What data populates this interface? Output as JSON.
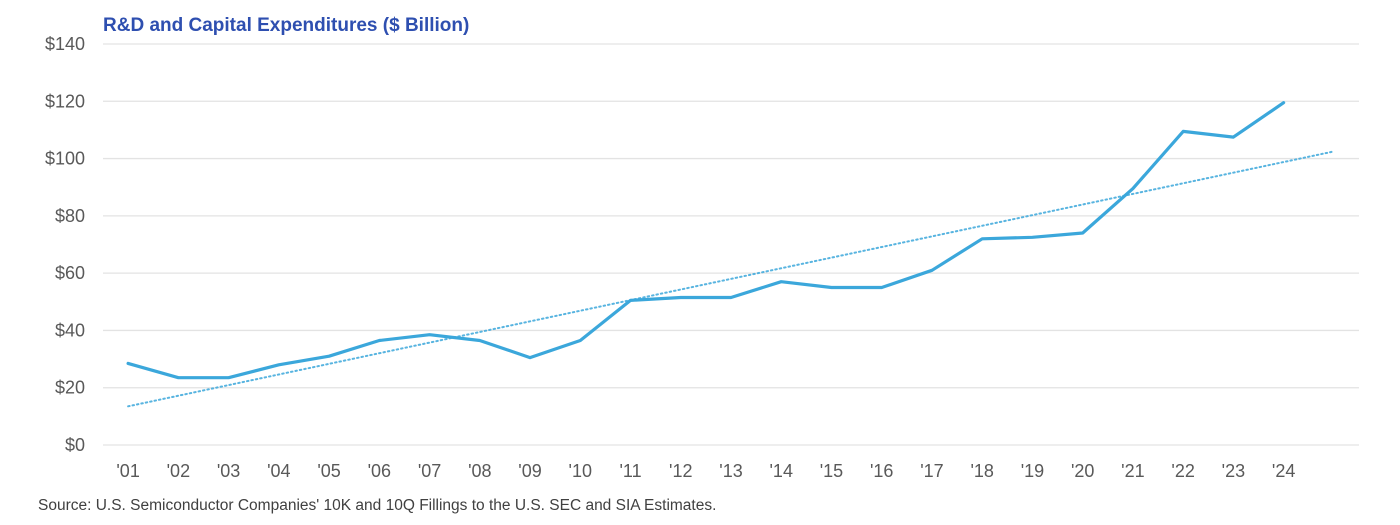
{
  "chart_data": {
    "type": "line",
    "title": "R&D and Capital Expenditures ($ Billion)",
    "xlabel": "",
    "ylabel": "",
    "categories": [
      "'01",
      "'02",
      "'03",
      "'04",
      "'05",
      "'06",
      "'07",
      "'08",
      "'09",
      "'10",
      "'11",
      "'12",
      "'13",
      "'14",
      "'15",
      "'16",
      "'17",
      "'18",
      "'19",
      "'20",
      "'21",
      "'22",
      "'23",
      "'24"
    ],
    "series": [
      {
        "name": "R&D and Capital Expenditures",
        "values": [
          28.5,
          23.5,
          23.5,
          28,
          31,
          36.5,
          38.5,
          36.5,
          30.5,
          36.5,
          50.5,
          51.5,
          51.5,
          57,
          55,
          55,
          61,
          72,
          72.5,
          74,
          89.5,
          109.5,
          107.5,
          119.5
        ],
        "color": "#3BA7DB",
        "style": "solid"
      },
      {
        "name": "Linear trend",
        "start": {
          "category_index": 0,
          "value": 13.5
        },
        "end": {
          "category_index": 24,
          "value": 102.5
        },
        "color": "#3BA7DB",
        "style": "dotted"
      }
    ],
    "ylim": [
      0,
      140
    ],
    "yticks": [
      0,
      20,
      40,
      60,
      80,
      100,
      120,
      140
    ],
    "ytick_labels": [
      "$0",
      "$20",
      "$40",
      "$60",
      "$80",
      "$100",
      "$120",
      "$140"
    ],
    "grid": true,
    "legend": "none",
    "source": "Source: U.S. Semiconductor Companies' 10K and 10Q Fillings to the U.S. SEC and SIA Estimates."
  },
  "colors": {
    "title": "#2E4FB0",
    "line": "#3BA7DB",
    "grid": "#e3e3e3",
    "tick_text": "#595959"
  }
}
